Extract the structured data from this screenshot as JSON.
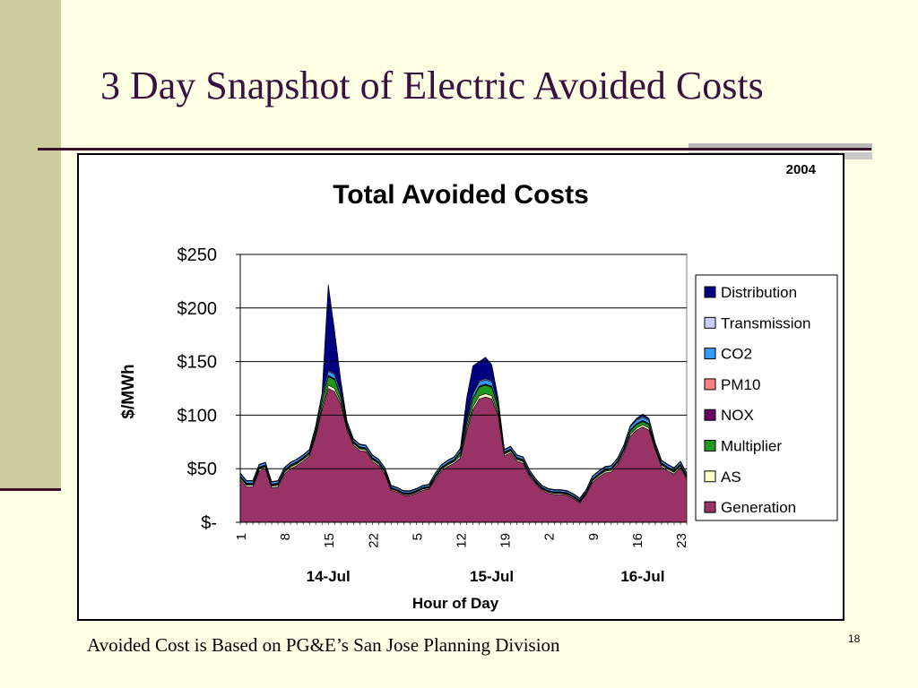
{
  "slide": {
    "title": "3 Day Snapshot of Electric Avoided Costs",
    "footer": "Avoided Cost is Based on PG&E’s San Jose Planning Division",
    "page_number": "18"
  },
  "colors": {
    "background": "#FFFFE5",
    "accent_bar": "#CDCC9F",
    "title": "#3A1040"
  },
  "chart_data": {
    "type": "area",
    "stacked": true,
    "title": "Total Avoided Costs",
    "year_label": "2004",
    "xlabel": "Hour of Day",
    "ylabel": "$/MWh",
    "ylim": [
      0,
      250
    ],
    "yticks": [
      {
        "value": 250,
        "label": "$250"
      },
      {
        "value": 200,
        "label": "$200"
      },
      {
        "value": 150,
        "label": "$150"
      },
      {
        "value": 100,
        "label": "$100"
      },
      {
        "value": 50,
        "label": "$50"
      },
      {
        "value": 0,
        "label": "$-"
      }
    ],
    "x_hour_labels": [
      {
        "index": 0,
        "label": "1"
      },
      {
        "index": 7,
        "label": "8"
      },
      {
        "index": 14,
        "label": "15"
      },
      {
        "index": 21,
        "label": "22"
      },
      {
        "index": 28,
        "label": "5"
      },
      {
        "index": 35,
        "label": "12"
      },
      {
        "index": 42,
        "label": "19"
      },
      {
        "index": 49,
        "label": "2"
      },
      {
        "index": 56,
        "label": "9"
      },
      {
        "index": 63,
        "label": "16"
      },
      {
        "index": 70,
        "label": "23"
      }
    ],
    "day_labels": [
      {
        "index": 14,
        "label": "14-Jul"
      },
      {
        "index": 40,
        "label": "15-Jul"
      },
      {
        "index": 64,
        "label": "16-Jul"
      }
    ],
    "grid": true,
    "legend_position": "right",
    "series": [
      {
        "name": "Generation",
        "color": "#993366",
        "values": [
          40,
          33,
          33,
          48,
          50,
          32,
          33,
          45,
          50,
          53,
          57,
          62,
          80,
          105,
          125,
          122,
          110,
          86,
          72,
          67,
          66,
          57,
          53,
          45,
          30,
          28,
          25,
          25,
          27,
          30,
          31,
          40,
          48,
          52,
          55,
          60,
          85,
          105,
          115,
          117,
          115,
          100,
          62,
          65,
          57,
          55,
          43,
          36,
          30,
          27,
          26,
          26,
          25,
          22,
          18,
          26,
          37,
          42,
          46,
          47,
          54,
          65,
          80,
          86,
          89,
          86,
          68,
          52,
          48,
          45,
          51,
          40
        ]
      },
      {
        "name": "AS",
        "color": "#FFFFCC",
        "values": [
          1.5,
          1.5,
          1.5,
          1.5,
          1.5,
          1.5,
          1.5,
          1.5,
          1.5,
          1.5,
          1.5,
          1.5,
          2,
          3,
          3,
          3,
          2,
          2,
          1.5,
          1.5,
          1.5,
          1.5,
          1.5,
          1.5,
          1,
          1,
          1,
          1,
          1,
          1,
          1,
          1.5,
          1.5,
          1.5,
          1.5,
          2,
          3,
          3,
          3,
          3,
          3,
          2,
          1.5,
          1.5,
          1.5,
          1.5,
          1.5,
          1,
          1,
          1,
          1,
          1,
          1,
          1,
          1,
          1,
          1.5,
          1.5,
          1.5,
          1.5,
          1.5,
          2,
          2,
          2,
          2,
          2,
          1.5,
          1.5,
          1.5,
          1.5,
          1.5,
          1.5
        ]
      },
      {
        "name": "Multiplier",
        "color": "#1E9A1E",
        "values": [
          1,
          1,
          1,
          1,
          1,
          1,
          1,
          1,
          1,
          1,
          1,
          1,
          3,
          6,
          8,
          8,
          5,
          2,
          1,
          1,
          1,
          1,
          1,
          1,
          0.5,
          0.5,
          0.5,
          0.5,
          0.5,
          0.5,
          0.5,
          1,
          1,
          1,
          1,
          3,
          5,
          7,
          8,
          8,
          8,
          5,
          1,
          1,
          1,
          1,
          1,
          0.5,
          0.5,
          0.5,
          0.5,
          0.5,
          0.5,
          0.5,
          0.5,
          0.5,
          1,
          1,
          1,
          1,
          1,
          1,
          3,
          3,
          3,
          3,
          1,
          1,
          1,
          1,
          1,
          1
        ]
      },
      {
        "name": "NOX",
        "color": "#660066",
        "values": [
          0.5,
          0.5,
          0.5,
          0.5,
          0.5,
          0.5,
          0.5,
          0.5,
          0.5,
          0.5,
          0.5,
          0.5,
          0.5,
          0.5,
          0.5,
          0.5,
          0.5,
          0.5,
          0.5,
          0.5,
          0.5,
          0.5,
          0.5,
          0.5,
          0.5,
          0.5,
          0.5,
          0.5,
          0.5,
          0.5,
          0.5,
          0.5,
          0.5,
          0.5,
          0.5,
          0.5,
          0.5,
          0.5,
          0.5,
          0.5,
          0.5,
          0.5,
          0.5,
          0.5,
          0.5,
          0.5,
          0.5,
          0.5,
          0.5,
          0.5,
          0.5,
          0.5,
          0.5,
          0.5,
          0.5,
          0.5,
          0.5,
          0.5,
          0.5,
          0.5,
          0.5,
          0.5,
          0.5,
          0.5,
          0.5,
          0.5,
          0.5,
          0.5,
          0.5,
          0.5,
          0.5,
          0.5
        ]
      },
      {
        "name": "PM10",
        "color": "#FF8080",
        "values": [
          0.5,
          0.5,
          0.5,
          0.5,
          0.5,
          0.5,
          0.5,
          0.5,
          0.5,
          0.5,
          0.5,
          0.5,
          0.5,
          0.5,
          0.5,
          0.5,
          0.5,
          0.5,
          0.5,
          0.5,
          0.5,
          0.5,
          0.5,
          0.5,
          0.5,
          0.5,
          0.5,
          0.5,
          0.5,
          0.5,
          0.5,
          0.5,
          0.5,
          0.5,
          0.5,
          0.5,
          0.5,
          0.5,
          0.5,
          0.5,
          0.5,
          0.5,
          0.5,
          0.5,
          0.5,
          0.5,
          0.5,
          0.5,
          0.5,
          0.5,
          0.5,
          0.5,
          0.5,
          0.5,
          0.5,
          0.5,
          0.5,
          0.5,
          0.5,
          0.5,
          0.5,
          0.5,
          0.5,
          0.5,
          0.5,
          0.5,
          0.5,
          0.5,
          0.5,
          0.5,
          0.5,
          0.5
        ]
      },
      {
        "name": "CO2",
        "color": "#3399FF",
        "values": [
          2,
          2,
          2,
          2,
          2,
          2,
          2,
          2,
          2,
          2,
          2,
          2,
          3,
          4,
          4,
          4,
          3,
          2.5,
          2,
          2,
          2,
          2,
          2,
          2,
          1.5,
          1.5,
          1.5,
          1.5,
          1.5,
          1.5,
          1.5,
          2,
          2,
          2,
          2,
          2.5,
          3,
          4,
          4,
          4,
          4,
          3,
          2,
          2,
          2,
          2,
          2,
          1.5,
          1.5,
          1.5,
          1.5,
          1.5,
          1.5,
          1.5,
          1.5,
          1.5,
          2,
          2,
          2,
          2,
          2,
          2.5,
          3,
          3,
          3,
          3,
          2,
          2,
          2,
          2,
          2,
          2
        ]
      },
      {
        "name": "Transmission",
        "color": "#CCCCFF",
        "values": [
          0.5,
          0.5,
          0.5,
          0.5,
          0.5,
          0.5,
          0.5,
          0.5,
          0.5,
          0.5,
          0.5,
          0.5,
          1,
          1,
          1,
          1,
          1,
          0.5,
          0.5,
          0.5,
          0.5,
          0.5,
          0.5,
          0.5,
          0.5,
          0.5,
          0.5,
          0.5,
          0.5,
          0.5,
          0.5,
          0.5,
          0.5,
          0.5,
          0.5,
          0.5,
          1,
          1,
          1,
          1,
          1,
          0.5,
          0.5,
          0.5,
          0.5,
          0.5,
          0.5,
          0.5,
          0.5,
          0.5,
          0.5,
          0.5,
          0.5,
          0.5,
          0.5,
          0.5,
          0.5,
          0.5,
          0.5,
          0.5,
          0.5,
          0.5,
          1,
          1,
          1,
          1,
          0.5,
          0.5,
          0.5,
          0.5,
          0.5,
          0.5
        ]
      },
      {
        "name": "Distribution",
        "color": "#000080",
        "values": [
          0,
          0,
          0,
          0,
          0,
          0,
          0,
          0,
          0,
          0,
          0,
          0,
          0,
          0,
          80,
          40,
          10,
          0,
          0,
          0,
          0,
          0,
          0,
          0,
          0,
          0,
          0,
          0,
          0,
          0,
          0,
          0,
          0,
          0,
          0,
          0,
          18,
          25,
          18,
          20,
          15,
          5,
          0,
          0,
          0,
          0,
          0,
          0,
          0,
          0,
          0,
          0,
          0,
          0,
          0,
          0,
          0,
          0,
          0,
          0,
          0,
          0,
          0,
          1,
          2,
          1,
          0,
          0,
          0,
          0,
          0,
          0
        ]
      }
    ],
    "legend_order": [
      "Distribution",
      "Transmission",
      "CO2",
      "PM10",
      "NOX",
      "Multiplier",
      "AS",
      "Generation"
    ]
  }
}
